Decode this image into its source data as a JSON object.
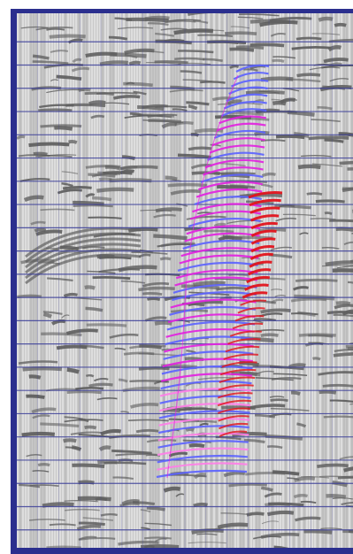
{
  "view": {
    "title": "",
    "type": "seismic-section-with-surface-overlay"
  },
  "colors": {
    "frame": "#2b2f8e",
    "background": "#c9c9c9",
    "trace_dark": "#5f5f5f",
    "trace_light": "#ececec",
    "grid_line": "#3c3f9a",
    "surface_magenta": "#e21fe0",
    "surface_blue": "#5b62ff",
    "surface_red": "#e2141c",
    "surface_pink": "#ff7de8"
  },
  "grid": {
    "horizontal_lines": 22,
    "vertical_lines": 15
  },
  "overlay": {
    "stick_count_main": 56,
    "stick_count_red": 32
  }
}
